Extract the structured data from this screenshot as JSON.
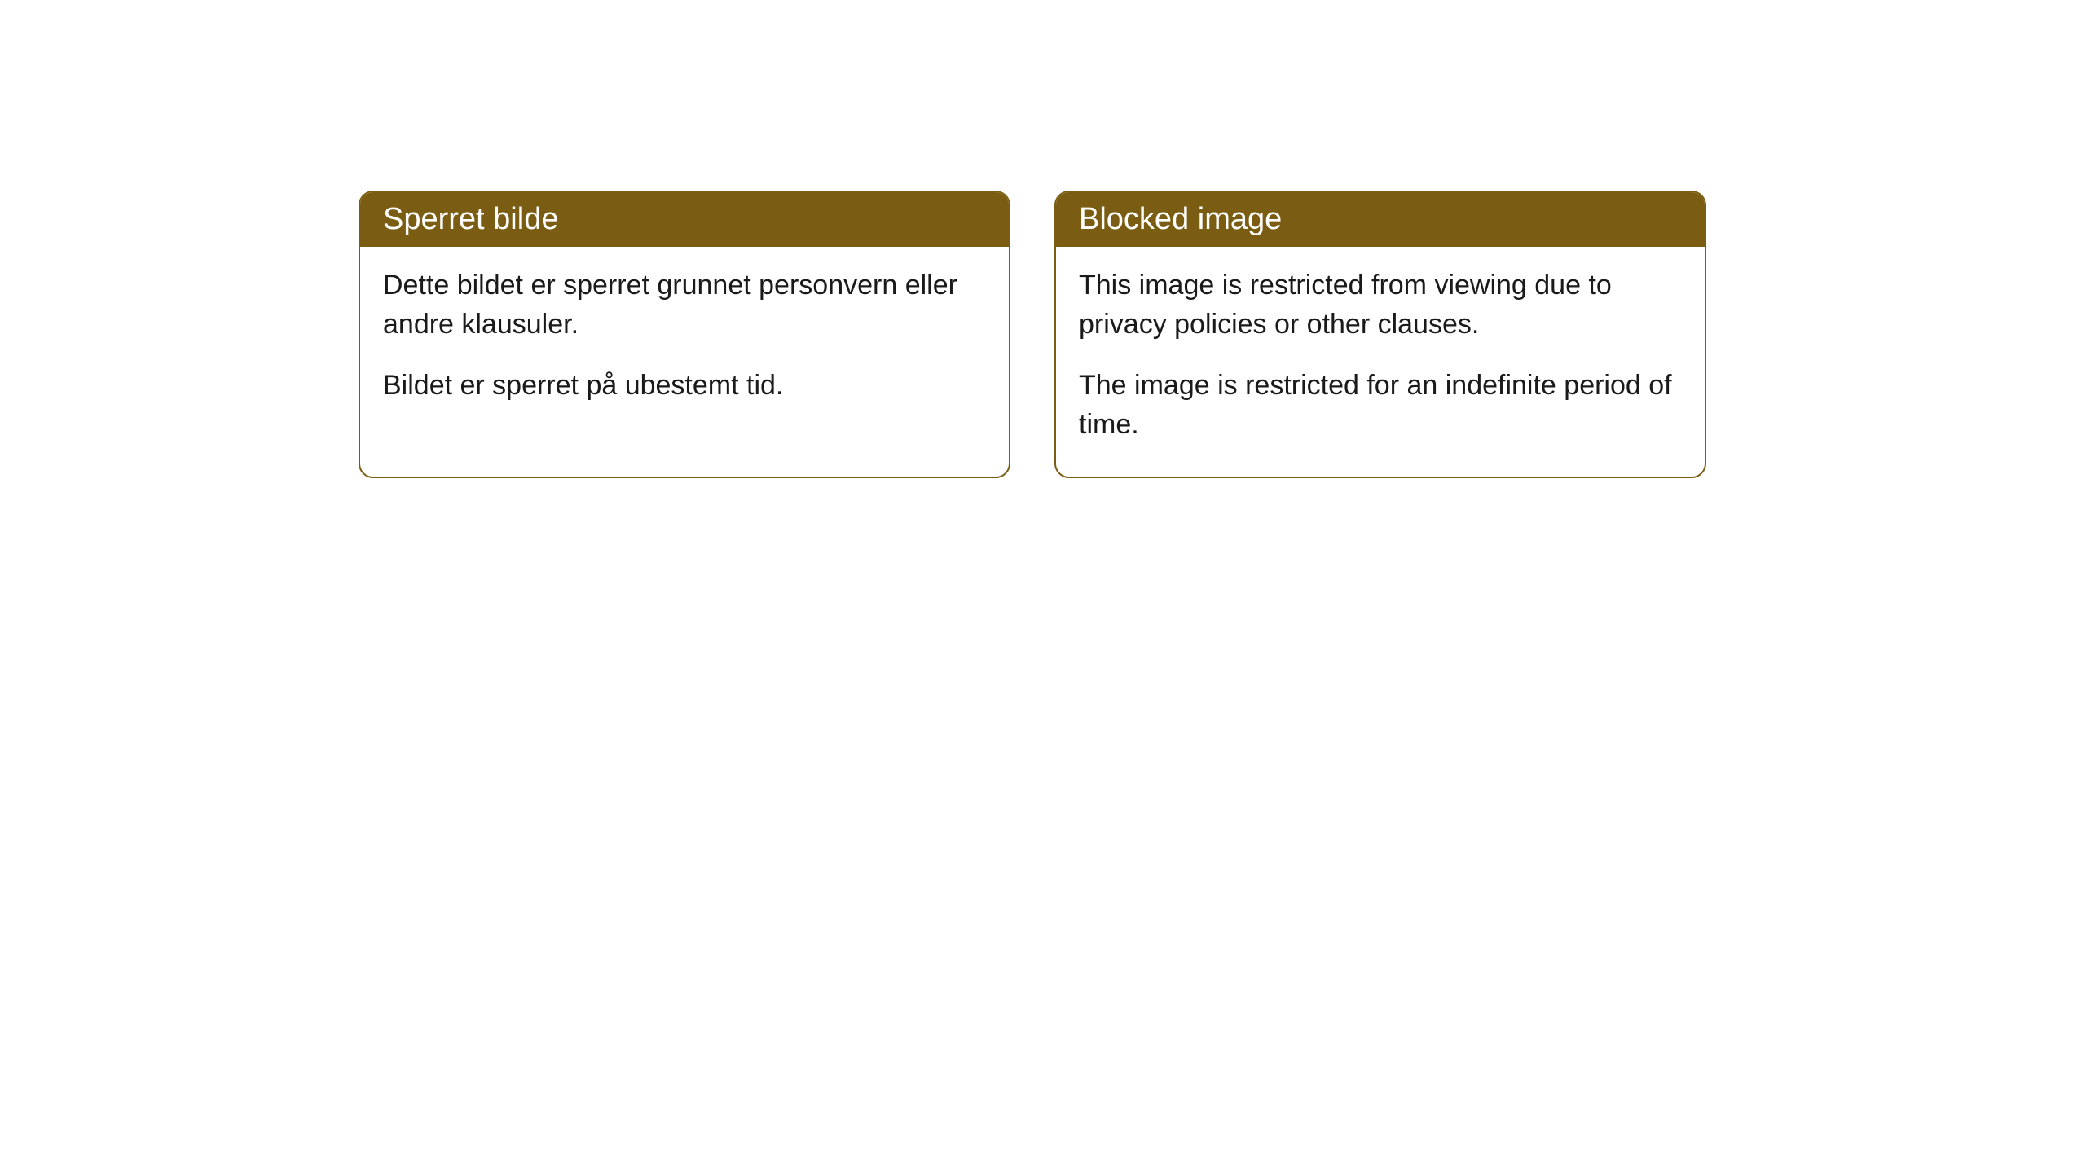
{
  "cards": [
    {
      "title": "Sperret bilde",
      "paragraph1": "Dette bildet er sperret grunnet personvern eller andre klausuler.",
      "paragraph2": "Bildet er sperret på ubestemt tid."
    },
    {
      "title": "Blocked image",
      "paragraph1": "This image is restricted from viewing due to privacy policies or other clauses.",
      "paragraph2": "The image is restricted for an indefinite period of time."
    }
  ],
  "style": {
    "header_background": "#7a5d12",
    "header_text_color": "#ffffff",
    "border_color": "#7a5d12",
    "body_background": "#ffffff",
    "body_text_color": "#1a1a1a",
    "border_radius": 18,
    "title_fontsize": 38,
    "body_fontsize": 34
  }
}
